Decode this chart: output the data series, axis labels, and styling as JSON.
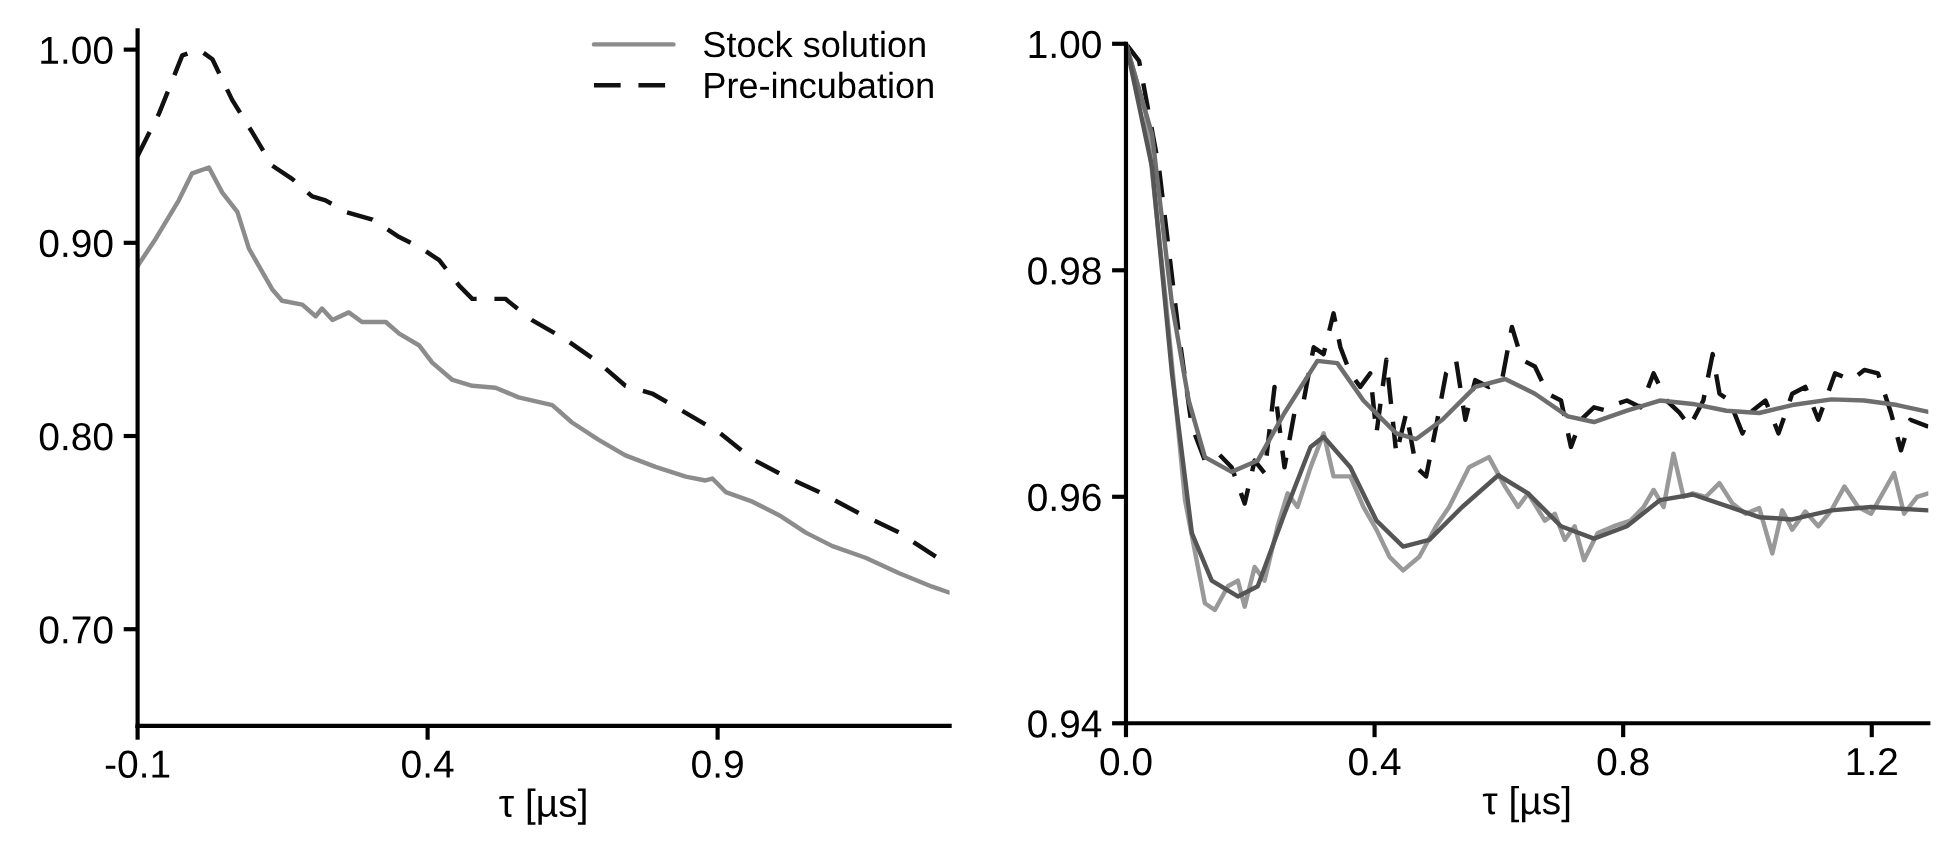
{
  "chart_data": [
    {
      "type": "line",
      "xlabel": "τ [µs]",
      "xlim": [
        -0.1,
        1.3
      ],
      "ylim": [
        0.65,
        1.01
      ],
      "xticks": [
        -0.1,
        0.4,
        0.9
      ],
      "yticks": [
        {
          "value": 0.7,
          "label": "0.70"
        },
        {
          "value": 0.8,
          "label": "0.80"
        },
        {
          "value": 0.9,
          "label": "0.90"
        },
        {
          "value": 1.0,
          "label": "1.00"
        }
      ],
      "grid": false,
      "legend": "top right",
      "marker": "none",
      "series": [
        {
          "name": "Stock solution",
          "color": "#8c8c8c",
          "line_style": "solid",
          "x": [
            -0.1,
            -0.069,
            -0.029,
            -0.006,
            0.023,
            0.046,
            0.072,
            0.092,
            0.132,
            0.149,
            0.184,
            0.207,
            0.218,
            0.236,
            0.264,
            0.287,
            0.328,
            0.351,
            0.385,
            0.408,
            0.443,
            0.477,
            0.517,
            0.557,
            0.615,
            0.649,
            0.695,
            0.741,
            0.793,
            0.845,
            0.879,
            0.891,
            0.914,
            0.96,
            1.006,
            1.052,
            1.098,
            1.155,
            1.213,
            1.27,
            1.299
          ],
          "values": [
            0.888,
            0.902,
            0.922,
            0.936,
            0.939,
            0.926,
            0.916,
            0.897,
            0.876,
            0.87,
            0.868,
            0.862,
            0.866,
            0.86,
            0.864,
            0.859,
            0.859,
            0.853,
            0.847,
            0.838,
            0.829,
            0.826,
            0.825,
            0.82,
            0.816,
            0.807,
            0.798,
            0.79,
            0.784,
            0.779,
            0.777,
            0.778,
            0.771,
            0.766,
            0.759,
            0.75,
            0.743,
            0.737,
            0.729,
            0.722,
            0.719
          ]
        },
        {
          "name": "Pre-incubation",
          "color": "#111111",
          "line_style": "dashed",
          "x": [
            -0.1,
            -0.063,
            -0.023,
            0.006,
            0.029,
            0.063,
            0.098,
            0.132,
            0.167,
            0.201,
            0.224,
            0.259,
            0.305,
            0.351,
            0.385,
            0.42,
            0.454,
            0.477,
            0.534,
            0.58,
            0.638,
            0.695,
            0.741,
            0.787,
            0.845,
            0.902,
            0.96,
            1.017,
            1.075,
            1.144,
            1.213,
            1.299
          ],
          "values": [
            0.945,
            0.967,
            0.997,
            1.0,
            0.995,
            0.974,
            0.957,
            0.94,
            0.933,
            0.924,
            0.922,
            0.916,
            0.912,
            0.903,
            0.898,
            0.891,
            0.878,
            0.871,
            0.871,
            0.86,
            0.85,
            0.838,
            0.826,
            0.822,
            0.812,
            0.802,
            0.788,
            0.779,
            0.771,
            0.76,
            0.75,
            0.733
          ]
        }
      ]
    },
    {
      "type": "line",
      "xlabel": "τ [µs]",
      "xlim": [
        0.0,
        1.291
      ],
      "ylim": [
        0.94,
        1.0
      ],
      "xticks": [
        {
          "value": 0.0,
          "label": "0.0"
        },
        0.4,
        0.8,
        1.2
      ],
      "yticks": [
        0.94,
        0.96,
        0.98,
        {
          "value": 1.0,
          "label": "1.00"
        }
      ],
      "grid": false,
      "legend": false,
      "marker": "none",
      "series": [
        {
          "color": "#111111",
          "line_style": "dashed",
          "x": [
            0.0,
            0.021,
            0.053,
            0.085,
            0.106,
            0.127,
            0.149,
            0.17,
            0.191,
            0.207,
            0.223,
            0.239,
            0.255,
            0.271,
            0.286,
            0.302,
            0.318,
            0.334,
            0.345,
            0.361,
            0.377,
            0.393,
            0.403,
            0.419,
            0.435,
            0.451,
            0.467,
            0.483,
            0.499,
            0.515,
            0.531,
            0.546,
            0.562,
            0.584,
            0.605,
            0.621,
            0.637,
            0.658,
            0.679,
            0.7,
            0.716,
            0.732,
            0.753,
            0.774,
            0.79,
            0.806,
            0.828,
            0.849,
            0.87,
            0.891,
            0.907,
            0.929,
            0.944,
            0.955,
            0.971,
            0.992,
            1.008,
            1.029,
            1.05,
            1.072,
            1.093,
            1.114,
            1.141,
            1.167,
            1.188,
            1.21,
            1.231,
            1.247,
            1.262,
            1.291
          ],
          "values": [
            1.0,
            0.9985,
            0.9891,
            0.9744,
            0.9662,
            0.9632,
            0.9638,
            0.9626,
            0.9594,
            0.9632,
            0.9621,
            0.9697,
            0.9626,
            0.9674,
            0.9685,
            0.9732,
            0.9726,
            0.9762,
            0.9732,
            0.9709,
            0.9697,
            0.9709,
            0.9656,
            0.9721,
            0.9638,
            0.9674,
            0.9626,
            0.9618,
            0.9662,
            0.9709,
            0.9721,
            0.9668,
            0.9703,
            0.9697,
            0.9703,
            0.975,
            0.9721,
            0.9715,
            0.9691,
            0.9685,
            0.9644,
            0.9668,
            0.9679,
            0.9676,
            0.9682,
            0.9685,
            0.9679,
            0.9709,
            0.9685,
            0.9674,
            0.9662,
            0.9685,
            0.9726,
            0.9691,
            0.9685,
            0.9656,
            0.9676,
            0.9685,
            0.9656,
            0.9691,
            0.9697,
            0.9668,
            0.9709,
            0.9703,
            0.9712,
            0.9709,
            0.9674,
            0.9641,
            0.9668,
            0.9662
          ]
        },
        {
          "color": "#999999",
          "line_style": "solid",
          "x": [
            0.0,
            0.032,
            0.064,
            0.095,
            0.127,
            0.143,
            0.164,
            0.18,
            0.191,
            0.207,
            0.223,
            0.244,
            0.26,
            0.276,
            0.297,
            0.318,
            0.334,
            0.361,
            0.382,
            0.403,
            0.424,
            0.446,
            0.472,
            0.499,
            0.52,
            0.552,
            0.584,
            0.61,
            0.631,
            0.647,
            0.674,
            0.69,
            0.706,
            0.722,
            0.737,
            0.759,
            0.785,
            0.812,
            0.833,
            0.849,
            0.865,
            0.881,
            0.897,
            0.912,
            0.933,
            0.955,
            0.976,
            0.997,
            1.019,
            1.04,
            1.056,
            1.072,
            1.093,
            1.114,
            1.135,
            1.156,
            1.178,
            1.199,
            1.236,
            1.252,
            1.273,
            1.291
          ],
          "values": [
            1.0,
            0.9938,
            0.9774,
            0.9597,
            0.9506,
            0.95,
            0.9521,
            0.9526,
            0.9503,
            0.9538,
            0.9526,
            0.9574,
            0.9603,
            0.9591,
            0.9626,
            0.9656,
            0.9618,
            0.9618,
            0.9591,
            0.9571,
            0.9547,
            0.9535,
            0.9547,
            0.9574,
            0.9591,
            0.9626,
            0.9635,
            0.9609,
            0.9591,
            0.9603,
            0.9579,
            0.9585,
            0.9562,
            0.9574,
            0.9544,
            0.9568,
            0.9574,
            0.9579,
            0.9591,
            0.9606,
            0.9591,
            0.9638,
            0.96,
            0.9603,
            0.96,
            0.9612,
            0.9594,
            0.9585,
            0.959,
            0.955,
            0.9588,
            0.9571,
            0.9587,
            0.9574,
            0.9588,
            0.9609,
            0.9591,
            0.9585,
            0.9621,
            0.9585,
            0.96,
            0.9603
          ]
        },
        {
          "color": "#6e6e6e",
          "line_style": "solid",
          "x": [
            0.0,
            0.042,
            0.074,
            0.101,
            0.127,
            0.17,
            0.212,
            0.255,
            0.308,
            0.34,
            0.382,
            0.435,
            0.467,
            0.509,
            0.562,
            0.61,
            0.658,
            0.711,
            0.753,
            0.806,
            0.859,
            0.912,
            0.966,
            1.019,
            1.072,
            1.135,
            1.188,
            1.241,
            1.291
          ],
          "values": [
            1.0,
            0.992,
            0.977,
            0.9685,
            0.9635,
            0.9622,
            0.9632,
            0.9674,
            0.972,
            0.9718,
            0.9685,
            0.9656,
            0.9651,
            0.9668,
            0.9697,
            0.9704,
            0.9691,
            0.9671,
            0.9666,
            0.9676,
            0.9685,
            0.9682,
            0.9676,
            0.9674,
            0.9681,
            0.9686,
            0.9685,
            0.9681,
            0.9675
          ]
        },
        {
          "color": "#555555",
          "line_style": "solid",
          "x": [
            0.0,
            0.042,
            0.074,
            0.106,
            0.138,
            0.18,
            0.212,
            0.255,
            0.297,
            0.318,
            0.361,
            0.403,
            0.446,
            0.488,
            0.541,
            0.599,
            0.647,
            0.7,
            0.753,
            0.806,
            0.859,
            0.912,
            0.966,
            1.019,
            1.072,
            1.135,
            1.199,
            1.291
          ],
          "values": [
            1.0,
            0.9891,
            0.9709,
            0.9568,
            0.9526,
            0.9512,
            0.9521,
            0.9585,
            0.9644,
            0.9653,
            0.9626,
            0.9579,
            0.9556,
            0.9562,
            0.9591,
            0.9619,
            0.9603,
            0.9574,
            0.9563,
            0.9574,
            0.9597,
            0.9602,
            0.9592,
            0.9582,
            0.958,
            0.9588,
            0.9591,
            0.9588
          ]
        }
      ]
    }
  ]
}
